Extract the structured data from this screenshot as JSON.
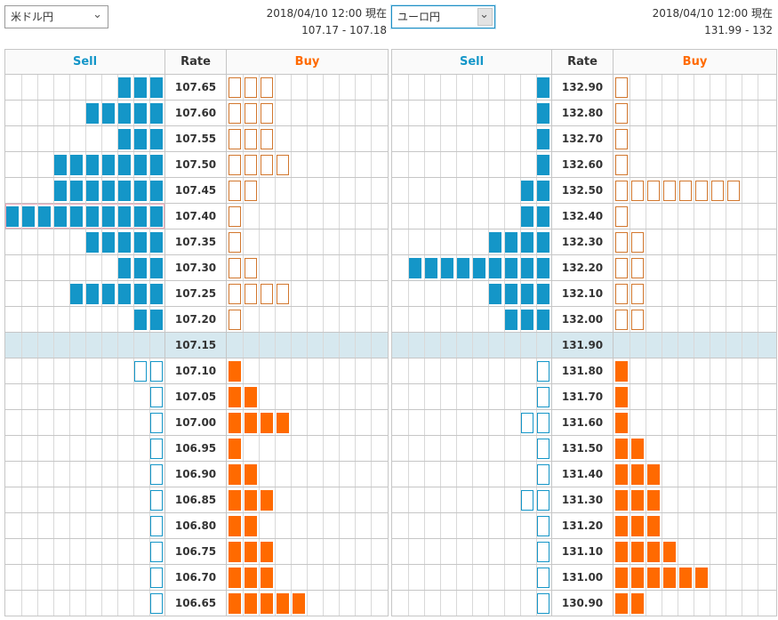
{
  "headers": {
    "sell": "Sell",
    "rate": "Rate",
    "buy": "Buy"
  },
  "colors": {
    "sell": "#1496c8",
    "buy": "#ff6a00",
    "mid_row": "#d6e8ef"
  },
  "icons": {
    "dropdown": "chevron-down-icon"
  },
  "panels": [
    {
      "pair": "米ドル円",
      "timestamp": "2018/04/10 12:00 現在",
      "quote": "107.17 - 107.18",
      "rows": [
        {
          "rate": "107.65",
          "sell_filled": 3,
          "sell_outline": 0,
          "buy_filled": 0,
          "buy_outline": 3
        },
        {
          "rate": "107.60",
          "sell_filled": 5,
          "sell_outline": 0,
          "buy_filled": 0,
          "buy_outline": 3
        },
        {
          "rate": "107.55",
          "sell_filled": 3,
          "sell_outline": 0,
          "buy_filled": 0,
          "buy_outline": 3
        },
        {
          "rate": "107.50",
          "sell_filled": 7,
          "sell_outline": 0,
          "buy_filled": 0,
          "buy_outline": 4
        },
        {
          "rate": "107.45",
          "sell_filled": 7,
          "sell_outline": 0,
          "buy_filled": 0,
          "buy_outline": 2
        },
        {
          "rate": "107.40",
          "sell_filled": 10,
          "sell_outline": 0,
          "buy_filled": 0,
          "buy_outline": 1,
          "highlight": true
        },
        {
          "rate": "107.35",
          "sell_filled": 5,
          "sell_outline": 0,
          "buy_filled": 0,
          "buy_outline": 1
        },
        {
          "rate": "107.30",
          "sell_filled": 3,
          "sell_outline": 0,
          "buy_filled": 0,
          "buy_outline": 2
        },
        {
          "rate": "107.25",
          "sell_filled": 6,
          "sell_outline": 0,
          "buy_filled": 0,
          "buy_outline": 4
        },
        {
          "rate": "107.20",
          "sell_filled": 2,
          "sell_outline": 0,
          "buy_filled": 0,
          "buy_outline": 1
        },
        {
          "rate": "107.15",
          "sell_filled": 0,
          "sell_outline": 0,
          "buy_filled": 0,
          "buy_outline": 0,
          "mid": true
        },
        {
          "rate": "107.10",
          "sell_filled": 0,
          "sell_outline": 2,
          "buy_filled": 1,
          "buy_outline": 0
        },
        {
          "rate": "107.05",
          "sell_filled": 0,
          "sell_outline": 1,
          "buy_filled": 2,
          "buy_outline": 0
        },
        {
          "rate": "107.00",
          "sell_filled": 0,
          "sell_outline": 1,
          "buy_filled": 4,
          "buy_outline": 0
        },
        {
          "rate": "106.95",
          "sell_filled": 0,
          "sell_outline": 1,
          "buy_filled": 1,
          "buy_outline": 0
        },
        {
          "rate": "106.90",
          "sell_filled": 0,
          "sell_outline": 1,
          "buy_filled": 2,
          "buy_outline": 0
        },
        {
          "rate": "106.85",
          "sell_filled": 0,
          "sell_outline": 1,
          "buy_filled": 3,
          "buy_outline": 0
        },
        {
          "rate": "106.80",
          "sell_filled": 0,
          "sell_outline": 1,
          "buy_filled": 2,
          "buy_outline": 0
        },
        {
          "rate": "106.75",
          "sell_filled": 0,
          "sell_outline": 1,
          "buy_filled": 3,
          "buy_outline": 0
        },
        {
          "rate": "106.70",
          "sell_filled": 0,
          "sell_outline": 1,
          "buy_filled": 3,
          "buy_outline": 0
        },
        {
          "rate": "106.65",
          "sell_filled": 0,
          "sell_outline": 1,
          "buy_filled": 5,
          "buy_outline": 0
        }
      ]
    },
    {
      "pair": "ユーロ円",
      "timestamp": "2018/04/10 12:00 現在",
      "quote": "131.99 - 132",
      "rows": [
        {
          "rate": "132.90",
          "sell_filled": 1,
          "sell_outline": 0,
          "buy_filled": 0,
          "buy_outline": 1
        },
        {
          "rate": "132.80",
          "sell_filled": 1,
          "sell_outline": 0,
          "buy_filled": 0,
          "buy_outline": 1
        },
        {
          "rate": "132.70",
          "sell_filled": 1,
          "sell_outline": 0,
          "buy_filled": 0,
          "buy_outline": 1
        },
        {
          "rate": "132.60",
          "sell_filled": 1,
          "sell_outline": 0,
          "buy_filled": 0,
          "buy_outline": 1
        },
        {
          "rate": "132.50",
          "sell_filled": 2,
          "sell_outline": 0,
          "buy_filled": 0,
          "buy_outline": 8
        },
        {
          "rate": "132.40",
          "sell_filled": 2,
          "sell_outline": 0,
          "buy_filled": 0,
          "buy_outline": 1
        },
        {
          "rate": "132.30",
          "sell_filled": 4,
          "sell_outline": 0,
          "buy_filled": 0,
          "buy_outline": 2
        },
        {
          "rate": "132.20",
          "sell_filled": 9,
          "sell_outline": 0,
          "buy_filled": 0,
          "buy_outline": 2
        },
        {
          "rate": "132.10",
          "sell_filled": 4,
          "sell_outline": 0,
          "buy_filled": 0,
          "buy_outline": 2
        },
        {
          "rate": "132.00",
          "sell_filled": 3,
          "sell_outline": 0,
          "buy_filled": 0,
          "buy_outline": 2
        },
        {
          "rate": "131.90",
          "sell_filled": 0,
          "sell_outline": 0,
          "buy_filled": 0,
          "buy_outline": 0,
          "mid": true
        },
        {
          "rate": "131.80",
          "sell_filled": 0,
          "sell_outline": 1,
          "buy_filled": 1,
          "buy_outline": 0
        },
        {
          "rate": "131.70",
          "sell_filled": 0,
          "sell_outline": 1,
          "buy_filled": 1,
          "buy_outline": 0
        },
        {
          "rate": "131.60",
          "sell_filled": 0,
          "sell_outline": 2,
          "buy_filled": 1,
          "buy_outline": 0
        },
        {
          "rate": "131.50",
          "sell_filled": 0,
          "sell_outline": 1,
          "buy_filled": 2,
          "buy_outline": 0
        },
        {
          "rate": "131.40",
          "sell_filled": 0,
          "sell_outline": 1,
          "buy_filled": 3,
          "buy_outline": 0
        },
        {
          "rate": "131.30",
          "sell_filled": 0,
          "sell_outline": 2,
          "buy_filled": 3,
          "buy_outline": 0
        },
        {
          "rate": "131.20",
          "sell_filled": 0,
          "sell_outline": 1,
          "buy_filled": 3,
          "buy_outline": 0
        },
        {
          "rate": "131.10",
          "sell_filled": 0,
          "sell_outline": 1,
          "buy_filled": 4,
          "buy_outline": 0
        },
        {
          "rate": "131.00",
          "sell_filled": 0,
          "sell_outline": 1,
          "buy_filled": 6,
          "buy_outline": 0
        },
        {
          "rate": "130.90",
          "sell_filled": 0,
          "sell_outline": 1,
          "buy_filled": 2,
          "buy_outline": 0
        }
      ]
    }
  ]
}
